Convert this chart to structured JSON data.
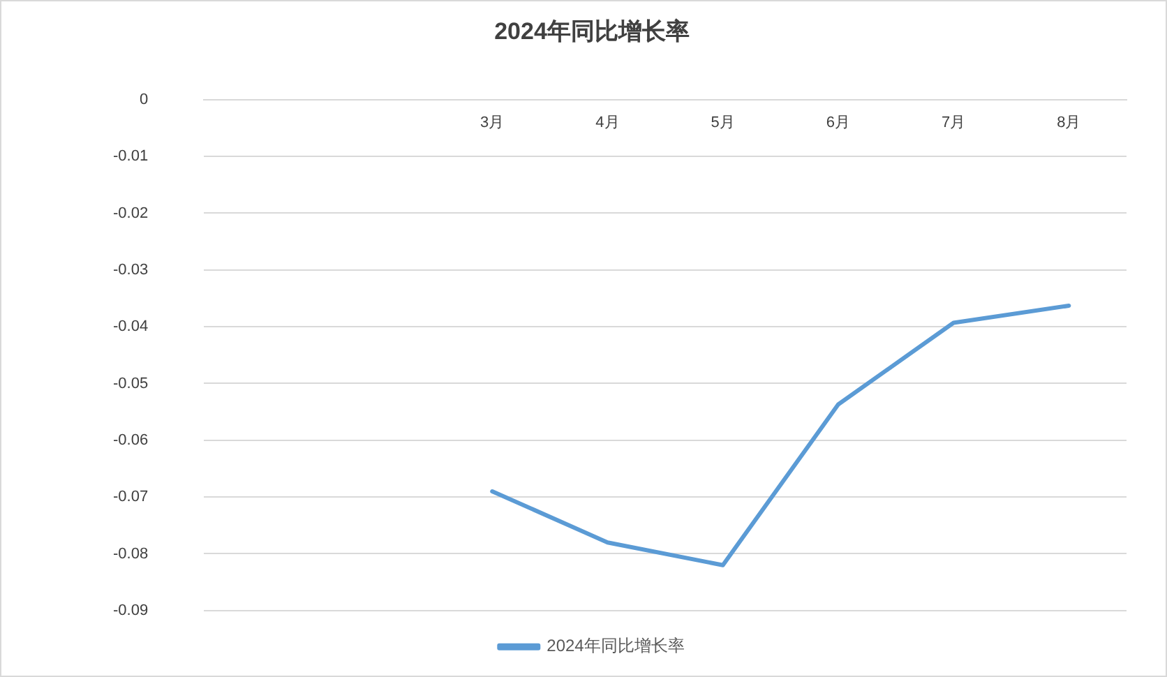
{
  "chart_data": {
    "type": "line",
    "title": "2024年同比增长率",
    "categories": [
      null,
      null,
      "3月",
      "4月",
      "5月",
      "6月",
      "7月",
      "8月"
    ],
    "series": [
      {
        "name": "2024年同比增长率",
        "color": "#5b9bd5",
        "values": [
          null,
          null,
          -0.069,
          -0.078,
          -0.082,
          -0.0537,
          -0.0393,
          -0.0363
        ]
      }
    ],
    "ylim": [
      -0.09,
      0
    ],
    "yticks": [
      0,
      -0.01,
      -0.02,
      -0.03,
      -0.04,
      -0.05,
      -0.06,
      -0.07,
      -0.08,
      -0.09
    ],
    "grid": "y",
    "legend": "bottom",
    "marker": "none",
    "line_style": "solid"
  }
}
